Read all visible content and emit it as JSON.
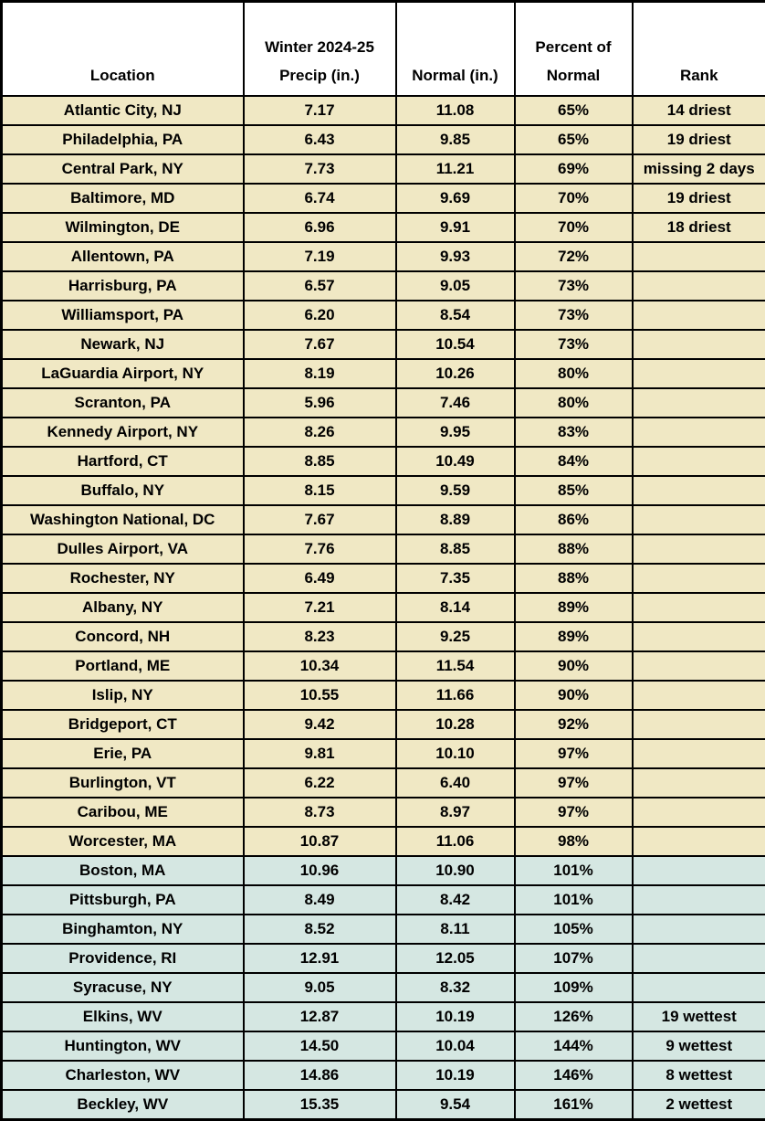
{
  "colors": {
    "below_normal_bg": "#F0E8C4",
    "above_normal_bg": "#D5E7E2",
    "border_color": "#000000",
    "header_bg": "#FFFFFF",
    "text_color": "#000000"
  },
  "header": {
    "location": "Location",
    "precip_line1": "Winter 2024-25",
    "precip_line2": "Precip (in.)",
    "normal": "Normal (in.)",
    "percent_line1": "Percent of",
    "percent_line2": "Normal",
    "rank": "Rank"
  },
  "chart_data": {
    "type": "table",
    "columns": [
      "Location",
      "Winter 2024-25 Precip (in.)",
      "Normal (in.)",
      "Percent of Normal",
      "Rank"
    ],
    "row_color_meaning": {
      "below": "percent of normal under 100%",
      "above": "percent of normal 100% or greater"
    },
    "rows": [
      {
        "location": "Atlantic City, NJ",
        "precip": "7.17",
        "normal": "11.08",
        "percent": "65%",
        "rank": "14 driest",
        "tone": "below"
      },
      {
        "location": "Philadelphia, PA",
        "precip": "6.43",
        "normal": "9.85",
        "percent": "65%",
        "rank": "19 driest",
        "tone": "below"
      },
      {
        "location": "Central Park, NY",
        "precip": "7.73",
        "normal": "11.21",
        "percent": "69%",
        "rank": "missing 2 days",
        "tone": "below"
      },
      {
        "location": "Baltimore, MD",
        "precip": "6.74",
        "normal": "9.69",
        "percent": "70%",
        "rank": "19 driest",
        "tone": "below"
      },
      {
        "location": "Wilmington, DE",
        "precip": "6.96",
        "normal": "9.91",
        "percent": "70%",
        "rank": "18 driest",
        "tone": "below"
      },
      {
        "location": "Allentown, PA",
        "precip": "7.19",
        "normal": "9.93",
        "percent": "72%",
        "rank": "",
        "tone": "below"
      },
      {
        "location": "Harrisburg, PA",
        "precip": "6.57",
        "normal": "9.05",
        "percent": "73%",
        "rank": "",
        "tone": "below"
      },
      {
        "location": "Williamsport, PA",
        "precip": "6.20",
        "normal": "8.54",
        "percent": "73%",
        "rank": "",
        "tone": "below"
      },
      {
        "location": "Newark, NJ",
        "precip": "7.67",
        "normal": "10.54",
        "percent": "73%",
        "rank": "",
        "tone": "below"
      },
      {
        "location": "LaGuardia Airport, NY",
        "precip": "8.19",
        "normal": "10.26",
        "percent": "80%",
        "rank": "",
        "tone": "below"
      },
      {
        "location": "Scranton, PA",
        "precip": "5.96",
        "normal": "7.46",
        "percent": "80%",
        "rank": "",
        "tone": "below"
      },
      {
        "location": "Kennedy Airport, NY",
        "precip": "8.26",
        "normal": "9.95",
        "percent": "83%",
        "rank": "",
        "tone": "below"
      },
      {
        "location": "Hartford, CT",
        "precip": "8.85",
        "normal": "10.49",
        "percent": "84%",
        "rank": "",
        "tone": "below"
      },
      {
        "location": "Buffalo, NY",
        "precip": "8.15",
        "normal": "9.59",
        "percent": "85%",
        "rank": "",
        "tone": "below"
      },
      {
        "location": "Washington National, DC",
        "precip": "7.67",
        "normal": "8.89",
        "percent": "86%",
        "rank": "",
        "tone": "below"
      },
      {
        "location": "Dulles Airport, VA",
        "precip": "7.76",
        "normal": "8.85",
        "percent": "88%",
        "rank": "",
        "tone": "below"
      },
      {
        "location": "Rochester, NY",
        "precip": "6.49",
        "normal": "7.35",
        "percent": "88%",
        "rank": "",
        "tone": "below"
      },
      {
        "location": "Albany, NY",
        "precip": "7.21",
        "normal": "8.14",
        "percent": "89%",
        "rank": "",
        "tone": "below"
      },
      {
        "location": "Concord, NH",
        "precip": "8.23",
        "normal": "9.25",
        "percent": "89%",
        "rank": "",
        "tone": "below"
      },
      {
        "location": "Portland, ME",
        "precip": "10.34",
        "normal": "11.54",
        "percent": "90%",
        "rank": "",
        "tone": "below"
      },
      {
        "location": "Islip, NY",
        "precip": "10.55",
        "normal": "11.66",
        "percent": "90%",
        "rank": "",
        "tone": "below"
      },
      {
        "location": "Bridgeport, CT",
        "precip": "9.42",
        "normal": "10.28",
        "percent": "92%",
        "rank": "",
        "tone": "below"
      },
      {
        "location": "Erie, PA",
        "precip": "9.81",
        "normal": "10.10",
        "percent": "97%",
        "rank": "",
        "tone": "below"
      },
      {
        "location": "Burlington, VT",
        "precip": "6.22",
        "normal": "6.40",
        "percent": "97%",
        "rank": "",
        "tone": "below"
      },
      {
        "location": "Caribou, ME",
        "precip": "8.73",
        "normal": "8.97",
        "percent": "97%",
        "rank": "",
        "tone": "below"
      },
      {
        "location": "Worcester, MA",
        "precip": "10.87",
        "normal": "11.06",
        "percent": "98%",
        "rank": "",
        "tone": "below"
      },
      {
        "location": "Boston, MA",
        "precip": "10.96",
        "normal": "10.90",
        "percent": "101%",
        "rank": "",
        "tone": "above"
      },
      {
        "location": "Pittsburgh, PA",
        "precip": "8.49",
        "normal": "8.42",
        "percent": "101%",
        "rank": "",
        "tone": "above"
      },
      {
        "location": "Binghamton, NY",
        "precip": "8.52",
        "normal": "8.11",
        "percent": "105%",
        "rank": "",
        "tone": "above"
      },
      {
        "location": "Providence, RI",
        "precip": "12.91",
        "normal": "12.05",
        "percent": "107%",
        "rank": "",
        "tone": "above"
      },
      {
        "location": "Syracuse, NY",
        "precip": "9.05",
        "normal": "8.32",
        "percent": "109%",
        "rank": "",
        "tone": "above"
      },
      {
        "location": "Elkins, WV",
        "precip": "12.87",
        "normal": "10.19",
        "percent": "126%",
        "rank": "19 wettest",
        "tone": "above"
      },
      {
        "location": "Huntington, WV",
        "precip": "14.50",
        "normal": "10.04",
        "percent": "144%",
        "rank": "9 wettest",
        "tone": "above"
      },
      {
        "location": "Charleston, WV",
        "precip": "14.86",
        "normal": "10.19",
        "percent": "146%",
        "rank": "8 wettest",
        "tone": "above"
      },
      {
        "location": "Beckley, WV",
        "precip": "15.35",
        "normal": "9.54",
        "percent": "161%",
        "rank": "2 wettest",
        "tone": "above"
      }
    ]
  }
}
